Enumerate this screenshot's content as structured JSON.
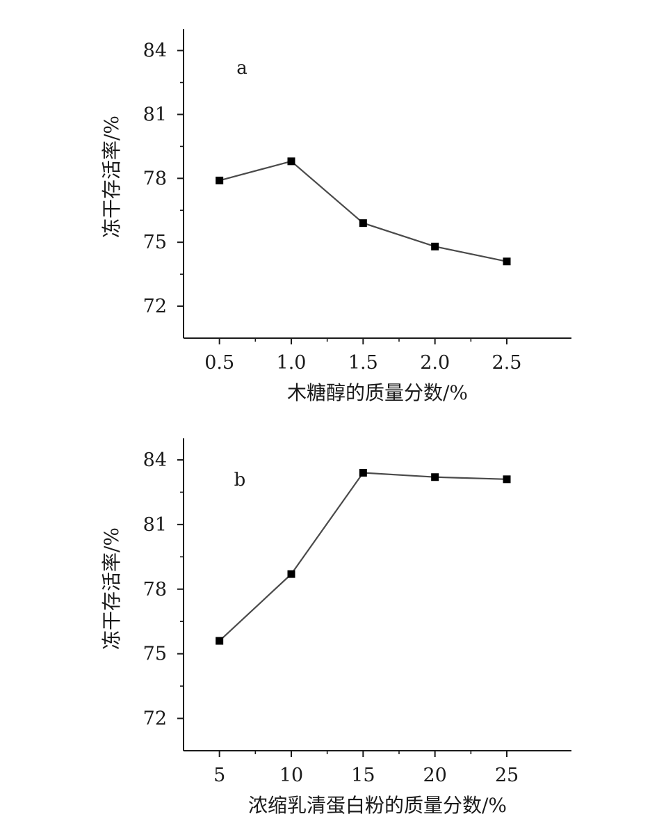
{
  "chart_data": [
    {
      "type": "line",
      "panel_label": "a",
      "x": [
        0.5,
        1.0,
        1.5,
        2.0,
        2.5
      ],
      "x_tick_labels": [
        "0.5",
        "1.0",
        "1.5",
        "2.0",
        "2.5"
      ],
      "series": [
        {
          "values": [
            77.9,
            78.8,
            75.9,
            74.8,
            74.1
          ]
        }
      ],
      "xlabel": "木糖醇的质量分数/%",
      "ylabel": "冻干存活率/%",
      "yticks": [
        72,
        75,
        78,
        81,
        84
      ],
      "ylim": [
        70.5,
        85
      ],
      "xlim": [
        0.25,
        2.95
      ],
      "grid": false,
      "marker": "square",
      "line_color": "#4a4a4a",
      "marker_color": "#000000"
    },
    {
      "type": "line",
      "panel_label": "b",
      "x": [
        5,
        10,
        15,
        20,
        25
      ],
      "x_tick_labels": [
        "5",
        "10",
        "15",
        "20",
        "25"
      ],
      "series": [
        {
          "values": [
            75.6,
            78.7,
            83.4,
            83.2,
            83.1
          ]
        }
      ],
      "xlabel": "浓缩乳清蛋白粉的质量分数/%",
      "ylabel": "冻干存活率/%",
      "yticks": [
        72,
        75,
        78,
        81,
        84
      ],
      "ylim": [
        70.5,
        85
      ],
      "xlim": [
        2.5,
        29.5
      ],
      "grid": false,
      "marker": "square",
      "line_color": "#4a4a4a",
      "marker_color": "#000000"
    }
  ]
}
